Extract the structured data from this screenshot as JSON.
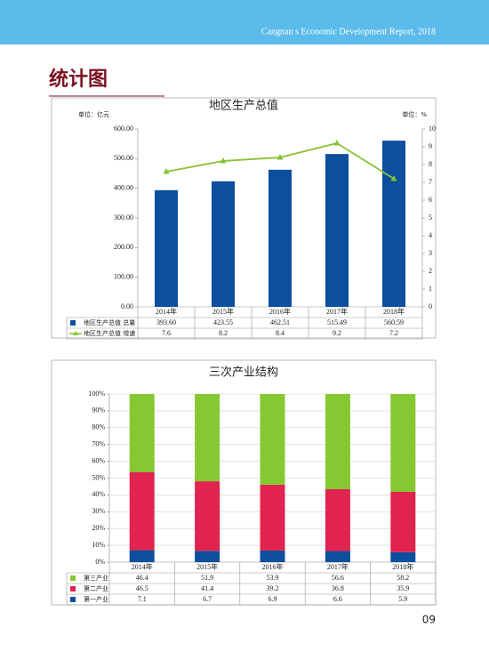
{
  "header": {
    "text": "Cangnan s Economic Development Report, 2018"
  },
  "section_title": "统计图",
  "page_number": "09",
  "chart_data": [
    {
      "type": "bar",
      "title": "地区生产总值",
      "y_label": "单位：亿元",
      "y2_label": "单位：%",
      "categories": [
        "2014年",
        "2015年",
        "2016年",
        "2017年",
        "2018年"
      ],
      "ylim": [
        0,
        600
      ],
      "yticks": [
        {
          "value": 0,
          "label": "0.00"
        },
        {
          "value": 100,
          "label": "100.00"
        },
        {
          "value": 200,
          "label": "200.00"
        },
        {
          "value": 300,
          "label": "300.00"
        },
        {
          "value": 400,
          "label": "400.00"
        },
        {
          "value": 500,
          "label": "500.00"
        },
        {
          "value": 600,
          "label": "600.00"
        }
      ],
      "y2lim": [
        0,
        10
      ],
      "y2ticks": [
        0,
        1,
        2,
        3,
        4,
        5,
        6,
        7,
        8,
        9,
        10
      ],
      "grid": false,
      "series": [
        {
          "name": "地区生产总值 总量",
          "type": "bar",
          "color": "#0b4f9e",
          "values": [
            393.6,
            423.55,
            462.51,
            515.49,
            560.59
          ],
          "value_labels": [
            "393.60",
            "423.55",
            "462.51",
            "515.49",
            "560.59"
          ]
        },
        {
          "name": "地区生产总值 增速",
          "type": "line",
          "axis": "y2",
          "color": "#86c232",
          "values": [
            7.6,
            8.2,
            8.4,
            9.2,
            7.2
          ]
        }
      ]
    },
    {
      "type": "stacked_bar",
      "title": "三次产业结构",
      "categories": [
        "2014年",
        "2015年",
        "2016年",
        "2017年",
        "2018年"
      ],
      "ylim": [
        0,
        100
      ],
      "yticks": [
        {
          "value": 0,
          "label": "0%"
        },
        {
          "value": 10,
          "label": "10%"
        },
        {
          "value": 20,
          "label": "20%"
        },
        {
          "value": 30,
          "label": "30%"
        },
        {
          "value": 40,
          "label": "40%"
        },
        {
          "value": 50,
          "label": "50%"
        },
        {
          "value": 60,
          "label": "60%"
        },
        {
          "value": 70,
          "label": "70%"
        },
        {
          "value": 80,
          "label": "80%"
        },
        {
          "value": 90,
          "label": "90%"
        },
        {
          "value": 100,
          "label": "100%"
        }
      ],
      "grid": true,
      "series": [
        {
          "name": "第三产业",
          "color": "#86c832",
          "values": [
            46.4,
            51.9,
            53.9,
            56.6,
            58.2
          ]
        },
        {
          "name": "第二产业",
          "color": "#e0244f",
          "values": [
            46.5,
            41.4,
            39.2,
            36.8,
            35.9
          ]
        },
        {
          "name": "第一产业",
          "color": "#0b4f9e",
          "values": [
            7.1,
            6.7,
            6.9,
            6.6,
            5.9
          ]
        }
      ]
    }
  ]
}
